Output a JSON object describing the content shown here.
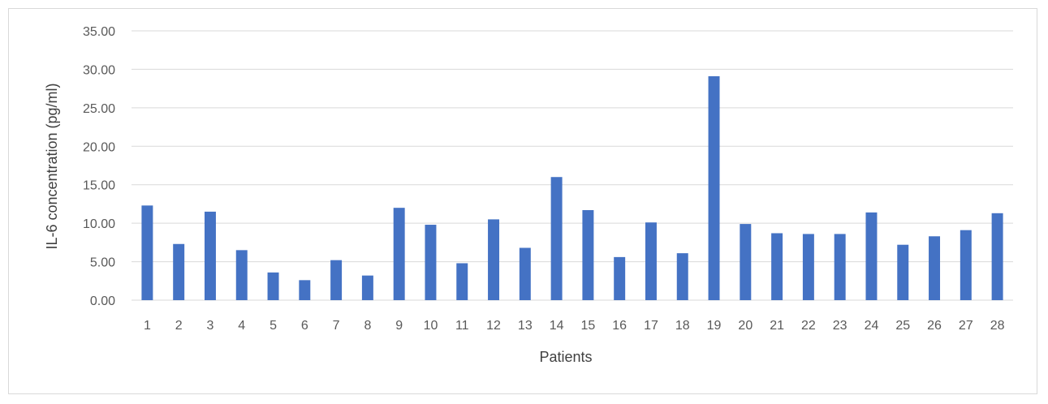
{
  "chart_data": {
    "type": "bar",
    "title": "",
    "xlabel": "Patients",
    "ylabel": "IL-6 concentration (pg/ml)",
    "ylim": [
      0,
      35
    ],
    "yticks": [
      "0.00",
      "5.00",
      "10.00",
      "15.00",
      "20.00",
      "25.00",
      "30.00",
      "35.00"
    ],
    "grid": true,
    "legend": "none",
    "bar_color": "#4472C4",
    "categories": [
      "1",
      "2",
      "3",
      "4",
      "5",
      "6",
      "7",
      "8",
      "9",
      "10",
      "11",
      "12",
      "13",
      "14",
      "15",
      "16",
      "17",
      "18",
      "19",
      "20",
      "21",
      "22",
      "23",
      "24",
      "25",
      "26",
      "27",
      "28"
    ],
    "values": [
      12.3,
      7.3,
      11.5,
      6.5,
      3.6,
      2.6,
      5.2,
      3.2,
      12.0,
      9.8,
      4.8,
      10.5,
      6.8,
      16.0,
      11.7,
      5.6,
      10.1,
      6.1,
      29.1,
      9.9,
      8.7,
      8.6,
      8.6,
      11.4,
      7.2,
      8.3,
      9.1,
      11.3
    ]
  }
}
